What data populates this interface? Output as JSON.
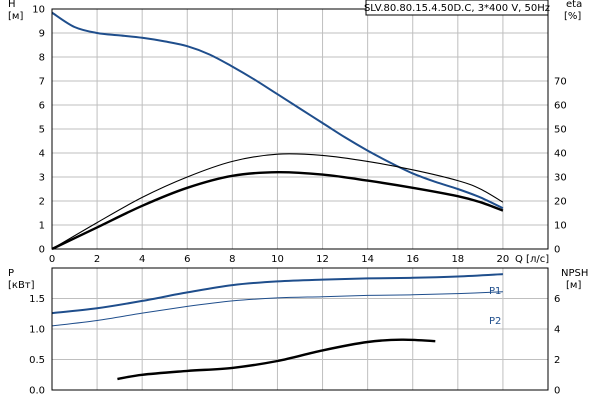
{
  "title": "SLV.80.80.15.4.50D.C, 3*400 V, 50Hz",
  "chart_data": [
    {
      "type": "line",
      "name": "upper",
      "left_axis": {
        "label_line1": "H",
        "label_line2": "[м]",
        "min": 0,
        "max": 10,
        "ticks": [
          0,
          1,
          2,
          3,
          4,
          5,
          6,
          7,
          8,
          9,
          10
        ]
      },
      "right_axis": {
        "label_line1": "eta",
        "label_line2": "[%]",
        "min": 0,
        "max": 100,
        "ticks": [
          0,
          10,
          20,
          30,
          40,
          50,
          60,
          70
        ]
      },
      "x_axis": {
        "label": "Q [л/с]",
        "min": 0,
        "max": 22,
        "ticks": [
          0,
          2,
          4,
          6,
          8,
          10,
          12,
          14,
          16,
          18,
          20
        ]
      },
      "grid": true,
      "series": [
        {
          "key": "H",
          "axis": "left",
          "color": "#1f4e8c",
          "style": "thick",
          "points": [
            [
              0,
              9.85
            ],
            [
              1,
              9.25
            ],
            [
              2,
              9.0
            ],
            [
              3,
              8.9
            ],
            [
              4,
              8.8
            ],
            [
              5,
              8.65
            ],
            [
              6,
              8.45
            ],
            [
              7,
              8.1
            ],
            [
              8,
              7.6
            ],
            [
              9,
              7.05
            ],
            [
              10,
              6.45
            ],
            [
              11,
              5.85
            ],
            [
              12,
              5.25
            ],
            [
              13,
              4.65
            ],
            [
              14,
              4.1
            ],
            [
              15,
              3.6
            ],
            [
              16,
              3.15
            ],
            [
              17,
              2.8
            ],
            [
              18,
              2.5
            ],
            [
              19,
              2.15
            ],
            [
              20,
              1.7
            ]
          ]
        },
        {
          "key": "eta_upper",
          "axis": "right",
          "color": "#000000",
          "style": "thin",
          "points": [
            [
              0,
              0
            ],
            [
              2,
              11
            ],
            [
              4,
              21.5
            ],
            [
              6,
              30
            ],
            [
              8,
              36.5
            ],
            [
              10,
              39.5
            ],
            [
              12,
              39
            ],
            [
              14,
              36.5
            ],
            [
              16,
              33
            ],
            [
              18,
              28.5
            ],
            [
              19,
              25
            ],
            [
              20,
              19.5
            ]
          ]
        },
        {
          "key": "eta_lower",
          "axis": "right",
          "color": "#000000",
          "style": "thick",
          "points": [
            [
              0,
              0
            ],
            [
              2,
              9
            ],
            [
              4,
              18
            ],
            [
              6,
              25.5
            ],
            [
              8,
              30.5
            ],
            [
              10,
              32
            ],
            [
              12,
              31
            ],
            [
              14,
              28.5
            ],
            [
              16,
              25.5
            ],
            [
              18,
              22
            ],
            [
              19,
              19.5
            ],
            [
              20,
              16
            ]
          ]
        }
      ]
    },
    {
      "type": "line",
      "name": "lower",
      "left_axis": {
        "label_line1": "P",
        "label_line2": "[кВт]",
        "min": 0,
        "max": 2.0,
        "ticks": [
          "0.0",
          "0.5",
          "1.0",
          "1.5"
        ]
      },
      "right_axis": {
        "label_line1": "NPSH",
        "label_line2": "[м]",
        "min": 0,
        "max": 8,
        "ticks": [
          0,
          2,
          4,
          6
        ]
      },
      "x_axis": {
        "min": 0,
        "max": 22,
        "ticks": [
          0,
          2,
          4,
          6,
          8,
          10,
          12,
          14,
          16,
          18,
          20
        ]
      },
      "grid": true,
      "series": [
        {
          "key": "P1",
          "name": "P1",
          "axis": "left",
          "color": "#1f4e8c",
          "style": "thick",
          "points": [
            [
              0,
              1.26
            ],
            [
              2,
              1.34
            ],
            [
              4,
              1.46
            ],
            [
              6,
              1.6
            ],
            [
              8,
              1.72
            ],
            [
              10,
              1.78
            ],
            [
              12,
              1.81
            ],
            [
              14,
              1.83
            ],
            [
              16,
              1.84
            ],
            [
              18,
              1.86
            ],
            [
              20,
              1.9
            ]
          ]
        },
        {
          "key": "P2",
          "name": "P2",
          "axis": "left",
          "color": "#1f4e8c",
          "style": "thin",
          "points": [
            [
              0,
              1.05
            ],
            [
              2,
              1.14
            ],
            [
              4,
              1.26
            ],
            [
              6,
              1.37
            ],
            [
              8,
              1.46
            ],
            [
              10,
              1.51
            ],
            [
              12,
              1.53
            ],
            [
              14,
              1.55
            ],
            [
              16,
              1.56
            ],
            [
              18,
              1.58
            ],
            [
              20,
              1.61
            ]
          ]
        },
        {
          "key": "NPSH",
          "axis": "right",
          "color": "#000000",
          "style": "thick",
          "points": [
            [
              2.9,
              0.72
            ],
            [
              4,
              1.0
            ],
            [
              6,
              1.25
            ],
            [
              8,
              1.45
            ],
            [
              10,
              1.9
            ],
            [
              12,
              2.6
            ],
            [
              14,
              3.15
            ],
            [
              15.5,
              3.3
            ],
            [
              17,
              3.2
            ]
          ]
        }
      ]
    }
  ]
}
